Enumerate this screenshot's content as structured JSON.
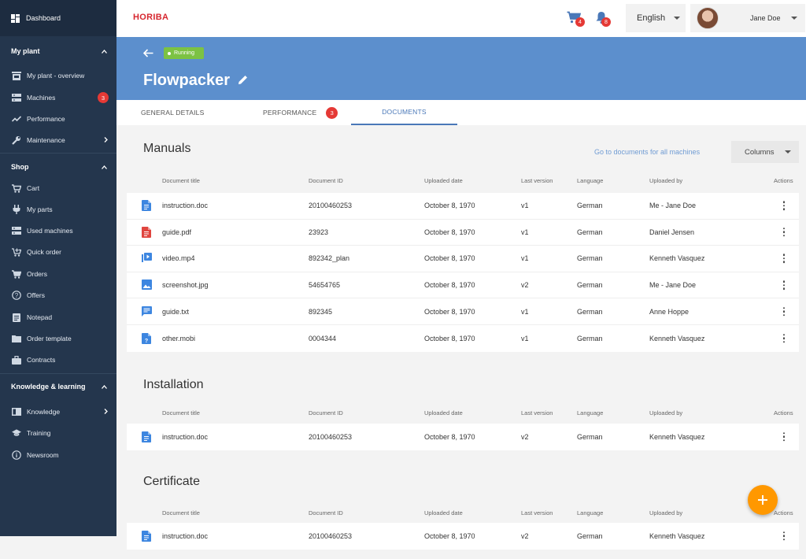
{
  "sidebar": {
    "dashboard": "Dashboard",
    "my_plant": {
      "title": "My plant",
      "items": [
        {
          "label": "My plant - overview"
        },
        {
          "label": "Machines",
          "badge": "3"
        },
        {
          "label": "Performance"
        },
        {
          "label": "Maintenance"
        }
      ]
    },
    "shop": {
      "title": "Shop",
      "items": [
        {
          "label": "Cart"
        },
        {
          "label": "My parts"
        },
        {
          "label": "Used machines"
        },
        {
          "label": "Quick order"
        },
        {
          "label": "Orders"
        },
        {
          "label": "Offers"
        },
        {
          "label": "Notepad"
        },
        {
          "label": "Order template"
        },
        {
          "label": "Contracts"
        }
      ]
    },
    "knowledge": {
      "title": "Knowledge & learning",
      "items": [
        {
          "label": "Knowledge"
        },
        {
          "label": "Training"
        },
        {
          "label": "Newsroom"
        }
      ]
    }
  },
  "topbar": {
    "logo": "HORIBA",
    "cart_badge": "4",
    "notification_badge": "8",
    "language": "English",
    "user_name": "Jane Doe"
  },
  "header": {
    "status": "Running",
    "title": "Flowpacker"
  },
  "tabs": [
    {
      "label": "GENERAL DETAILS"
    },
    {
      "label": "PERFORMANCE",
      "badge": "3"
    },
    {
      "label": "DOCUMENTS"
    }
  ],
  "actions": {
    "go_to_documents": "Go to documents for all machines",
    "columns": "Columns"
  },
  "columns": {
    "title": "Document title",
    "id": "Document ID",
    "date": "Uploaded date",
    "version": "Last version",
    "language": "Language",
    "uploaded_by": "Uploaded by",
    "actions": "Actions"
  },
  "sections": [
    {
      "title": "Manuals",
      "rows": [
        {
          "icon": "doc-icon",
          "title": "instruction.doc",
          "id": "20100460253",
          "date": "October 8, 1970",
          "version": "v1",
          "language": "German",
          "uploaded_by": "Me - Jane Doe"
        },
        {
          "icon": "pdf-icon",
          "title": "guide.pdf",
          "id": "23923",
          "date": "October 8, 1970",
          "version": "v1",
          "language": "German",
          "uploaded_by": "Daniel Jensen"
        },
        {
          "icon": "video-icon",
          "title": "video.mp4",
          "id": "892342_plan",
          "date": "October 8, 1970",
          "version": "v1",
          "language": "German",
          "uploaded_by": "Kenneth Vasquez"
        },
        {
          "icon": "image-icon",
          "title": "screenshot.jpg",
          "id": "54654765",
          "date": "October 8, 1970",
          "version": "v2",
          "language": "German",
          "uploaded_by": "Me - Jane Doe"
        },
        {
          "icon": "text-icon",
          "title": "guide.txt",
          "id": "892345",
          "date": "October 8, 1970",
          "version": "v1",
          "language": "German",
          "uploaded_by": "Anne Hoppe"
        },
        {
          "icon": "unknown-file-icon",
          "title": "other.mobi",
          "id": "0004344",
          "date": "October 8, 1970",
          "version": "v1",
          "language": "German",
          "uploaded_by": "Kenneth Vasquez"
        }
      ]
    },
    {
      "title": "Installation",
      "rows": [
        {
          "icon": "doc-icon",
          "title": "instruction.doc",
          "id": "20100460253",
          "date": "October 8, 1970",
          "version": "v2",
          "language": "German",
          "uploaded_by": "Kenneth Vasquez"
        }
      ]
    },
    {
      "title": "Certificate",
      "rows": [
        {
          "icon": "doc-icon",
          "title": "instruction.doc",
          "id": "20100460253",
          "date": "October 8, 1970",
          "version": "v2",
          "language": "German",
          "uploaded_by": "Kenneth Vasquez"
        }
      ]
    }
  ],
  "colors": {
    "sidebar": "#24364d",
    "header": "#5c8fcd",
    "accent": "#4a78b8",
    "badge": "#e53935",
    "running": "#7cc243",
    "fab": "#ff9800",
    "file_blue": "#3d86e0",
    "file_red": "#e0453f"
  }
}
